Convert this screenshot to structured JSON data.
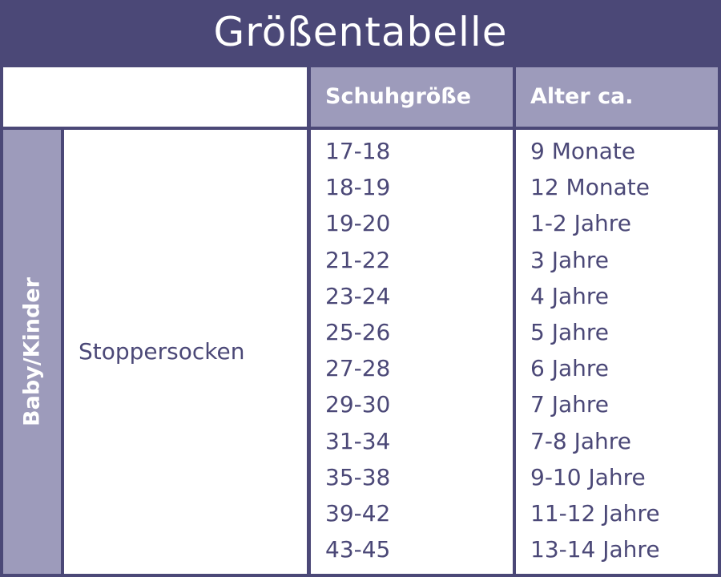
{
  "title": "Größentabelle",
  "table": {
    "headers": [
      "Schuhgröße",
      "Alter ca."
    ],
    "group": "Baby/Kinder",
    "product": "Stoppersocken",
    "rows": [
      [
        "17-18",
        "9 Monate"
      ],
      [
        "18-19",
        "12 Monate"
      ],
      [
        "19-20",
        "1-2 Jahre"
      ],
      [
        "21-22",
        "3 Jahre"
      ],
      [
        "23-24",
        "4 Jahre"
      ],
      [
        "25-26",
        "5 Jahre"
      ],
      [
        "27-28",
        "6 Jahre"
      ],
      [
        "29-30",
        "7 Jahre"
      ],
      [
        "31-34",
        "7-8 Jahre"
      ],
      [
        "35-38",
        "9-10 Jahre"
      ],
      [
        "39-42",
        "11-12 Jahre"
      ],
      [
        "43-45",
        "13-14 Jahre"
      ]
    ]
  }
}
